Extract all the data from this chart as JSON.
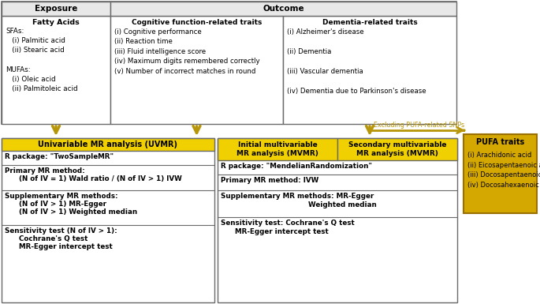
{
  "background_color": "#ffffff",
  "gray_header_bg": "#d9d9d9",
  "cell_border": "#6a6a6a",
  "yellow_bg": "#f0d000",
  "yellow_pufa_bg": "#d4a800",
  "arrow_color": "#b8960a",
  "excluding_color": "#b8960a",
  "exposure_text_title": "Fatty Acids",
  "exposure_text": "SFAs:\n   (i) Palmitic acid\n   (ii) Stearic acid\n\nMUFAs:\n   (i) Oleic acid\n   (ii) Palmitoleic acid",
  "cog_title": "Cognitive function-related traits",
  "cog_text": "(i) Cognitive performance\n(ii) Reaction time\n(iii) Fluid intelligence score\n(iv) Maximum digits remembered correctly\n(v) Number of incorrect matches in round",
  "dem_title": "Dementia-related traits",
  "dem_text": "(i) Alzheimer's disease\n\n(ii) Dementia\n\n(iii) Vascular dementia\n\n(iv) Dementia due to Parkinson's disease",
  "uvmr_header": "Univariable MR analysis (UVMR)",
  "uvmr_r": "R package: \"TwoSampleMR\"",
  "uvmr_primary": "Primary MR method:",
  "uvmr_primary2": "      (N of IV = 1) Wald ratio / (N of IV > 1) IVW",
  "uvmr_supp": "Supplementary MR methods:",
  "uvmr_supp2": "      (N of IV > 1) MR-Egger",
  "uvmr_supp3": "      (N of IV > 1) Weighted median",
  "uvmr_sens": "Sensitivity test (N of IV > 1):",
  "uvmr_sens2": "      Cochrane's Q test",
  "uvmr_sens3": "      MR-Egger intercept test",
  "mvmr_header1": "Initial multivariable\nMR analysis (MVMR)",
  "mvmr_header2": "Secondary multivariable\nMR analysis (MVMR)",
  "mvmr_r": "R package: \"MendelianRandomization\"",
  "mvmr_primary": "Primary MR method: IVW",
  "mvmr_supp": "Supplementary MR methods: MR-Egger",
  "mvmr_supp2": "                                     Weighted median",
  "mvmr_sens": "Sensitivity test: Cochrane's Q test",
  "mvmr_sens2": "      MR-Egger intercept test",
  "pufa_header": "PUFA traits",
  "pufa_text": "(i) Arachidonic acid\n(ii) Eicosapentaenoic acid\n(iii) Docosapentaenoic acid\n(iv) Docosahexaenoic acid",
  "excluding_text": "Excluding PUFA-related SNPs"
}
